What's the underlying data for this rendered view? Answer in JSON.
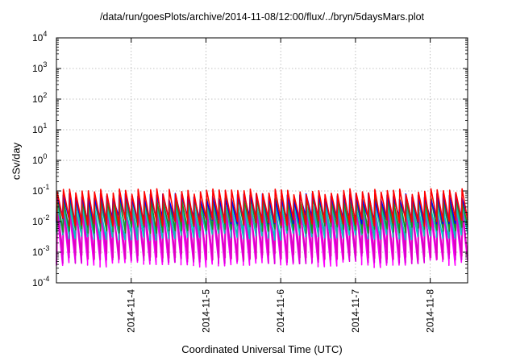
{
  "chart_data": {
    "type": "line",
    "title": "/data/run/goesPlots/archive/2014-11-08/12:00/flux/../bryn/5daysMars.plot",
    "xlabel": "Coordinated Universal Time (UTC)",
    "ylabel": "cSv/day",
    "x_axis": {
      "range": [
        "2014-11-03T00:00",
        "2014-11-08T12:00"
      ],
      "ticks": [
        "2014-11-4",
        "2014-11-5",
        "2014-11-6",
        "2014-11-7",
        "2014-11-8"
      ]
    },
    "y_axis": {
      "scale": "log",
      "ylim": [
        0.0001,
        10000
      ],
      "ticks": [
        {
          "value": 0.0001,
          "base": "10",
          "exp": "-4"
        },
        {
          "value": 0.001,
          "base": "10",
          "exp": "-3"
        },
        {
          "value": 0.01,
          "base": "10",
          "exp": "-2"
        },
        {
          "value": 0.1,
          "base": "10",
          "exp": "-1"
        },
        {
          "value": 1,
          "base": "10",
          "exp": "0"
        },
        {
          "value": 10,
          "base": "10",
          "exp": "1"
        },
        {
          "value": 100,
          "base": "10",
          "exp": "2"
        },
        {
          "value": 1000,
          "base": "10",
          "exp": "3"
        },
        {
          "value": 10000,
          "base": "10",
          "exp": "4"
        }
      ]
    },
    "grid": true,
    "legend": "none",
    "orbit_period_hours": 2,
    "series": [
      {
        "color": "#ff00ff",
        "peak": 0.025,
        "trough": 0.00045
      },
      {
        "color": "#dd00dd",
        "peak": 0.03,
        "trough": 0.0006
      },
      {
        "color": "#e000c0",
        "peak": 0.028,
        "trough": 0.0008
      },
      {
        "color": "#00c8c8",
        "peak": 0.035,
        "trough": 0.0035
      },
      {
        "color": "#20b2aa",
        "peak": 0.045,
        "trough": 0.005
      },
      {
        "color": "#228b22",
        "peak": 0.055,
        "trough": 0.006
      },
      {
        "color": "#0000ff",
        "peak": 0.07,
        "trough": 0.012
      },
      {
        "color": "#ff0000",
        "peak": 0.1,
        "trough": 0.01
      }
    ]
  }
}
